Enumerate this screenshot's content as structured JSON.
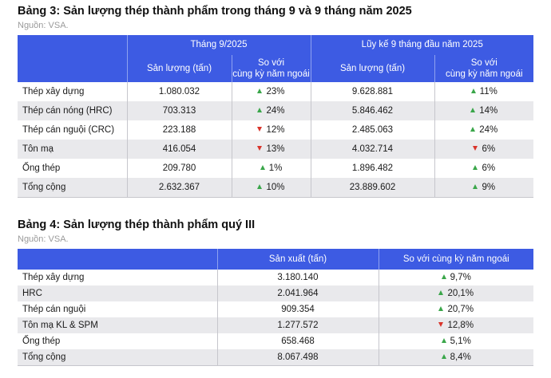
{
  "table3": {
    "title": "Bảng 3: Sản lượng thép thành phẩm trong tháng 9 và 9 tháng năm 2025",
    "source": "Nguồn: VSA.",
    "group1": "Tháng 9/2025",
    "group2": "Lũy kế 9 tháng đầu năm 2025",
    "col_output": "Sản lượng (tấn)",
    "col_compare_line1": "So với",
    "col_compare_line2": "cùng kỳ năm ngoái",
    "rows": [
      {
        "name": "Thép xây dựng",
        "m_out": "1.080.032",
        "m_dir": "up",
        "m_chg": "23%",
        "y_out": "9.628.881",
        "y_dir": "up",
        "y_chg": "11%"
      },
      {
        "name": "Thép cán nóng (HRC)",
        "m_out": "703.313",
        "m_dir": "up",
        "m_chg": "24%",
        "y_out": "5.846.462",
        "y_dir": "up",
        "y_chg": "14%"
      },
      {
        "name": "Thép cán nguội (CRC)",
        "m_out": "223.188",
        "m_dir": "down",
        "m_chg": "12%",
        "y_out": "2.485.063",
        "y_dir": "up",
        "y_chg": "24%"
      },
      {
        "name": "Tôn mạ",
        "m_out": "416.054",
        "m_dir": "down",
        "m_chg": "13%",
        "y_out": "4.032.714",
        "y_dir": "down",
        "y_chg": "6%"
      },
      {
        "name": "Ống thép",
        "m_out": "209.780",
        "m_dir": "up",
        "m_chg": "1%",
        "y_out": "1.896.482",
        "y_dir": "up",
        "y_chg": "6%"
      },
      {
        "name": "Tổng cộng",
        "m_out": "2.632.367",
        "m_dir": "up",
        "m_chg": "10%",
        "y_out": "23.889.602",
        "y_dir": "up",
        "y_chg": "9%"
      }
    ]
  },
  "table4": {
    "title": "Bảng 4: Sản lượng thép thành phẩm quý III",
    "source": "Nguồn: VSA.",
    "col_output": "Sản xuất (tấn)",
    "col_compare": "So với cùng kỳ năm ngoái",
    "rows": [
      {
        "name": "Thép xây dựng",
        "out": "3.180.140",
        "dir": "up",
        "chg": "9,7%"
      },
      {
        "name": "HRC",
        "out": "2.041.964",
        "dir": "up",
        "chg": "20,1%"
      },
      {
        "name": "Thép cán nguội",
        "out": "909.354",
        "dir": "up",
        "chg": "20,7%"
      },
      {
        "name": "Tôn mạ KL & SPM",
        "out": "1.277.572",
        "dir": "down",
        "chg": "12,8%"
      },
      {
        "name": "Ống thép",
        "out": "658.468",
        "dir": "up",
        "chg": "5,1%"
      },
      {
        "name": "Tổng cộng",
        "out": "8.067.498",
        "dir": "up",
        "chg": "8,4%"
      }
    ]
  },
  "colors": {
    "header": "#3d5be3",
    "alt_row": "#e9e9ec",
    "up": "#3aa64a",
    "down": "#d9342b"
  },
  "icons": {
    "up": "triangle-up-icon",
    "down": "triangle-down-icon"
  }
}
